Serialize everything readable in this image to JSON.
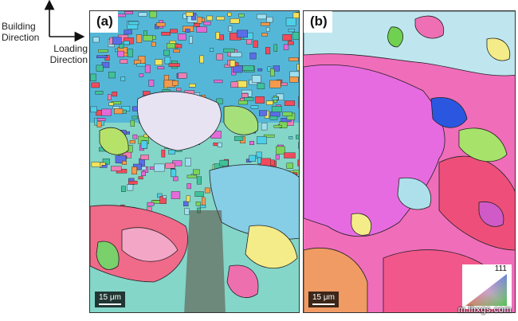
{
  "key": {
    "building_direction_line1": "Building",
    "building_direction_line2": "Direction",
    "loading_direction_line1": "Loading",
    "loading_direction_line2": "Direction"
  },
  "panels": [
    {
      "label": "(a)",
      "scale_bar": "15 μm"
    },
    {
      "label": "(b)",
      "scale_bar": "15 μm",
      "ipf_label": "111"
    }
  ],
  "watermark": "m.lhxgs.com"
}
